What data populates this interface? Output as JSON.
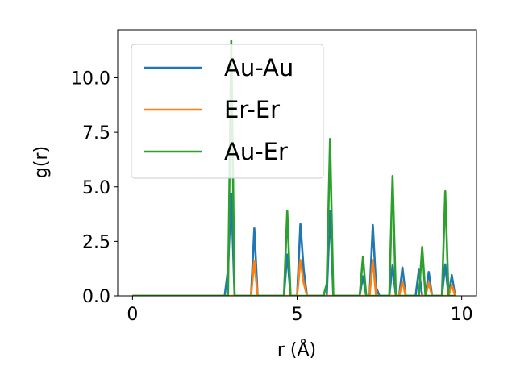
{
  "chart_data": {
    "type": "line",
    "xlabel": "r (Å)",
    "ylabel": "g(r)",
    "xlim": [
      -0.45,
      10.45
    ],
    "ylim": [
      0,
      12.2
    ],
    "xticks": [
      0,
      5,
      10
    ],
    "xtick_labels": [
      "0",
      "5",
      "10"
    ],
    "yticks": [
      0.0,
      2.5,
      5.0,
      7.5,
      10.0
    ],
    "ytick_labels": [
      "0.0",
      "2.5",
      "5.0",
      "7.5",
      "10.0"
    ],
    "grid": false,
    "legend_position": "top-left",
    "x": [
      0.0,
      0.1,
      0.2,
      0.3,
      0.4,
      0.5,
      0.6,
      0.7,
      0.8,
      0.9,
      1.0,
      1.1,
      1.2,
      1.3,
      1.4,
      1.5,
      1.6,
      1.7,
      1.8,
      1.9,
      2.0,
      2.1,
      2.2,
      2.3,
      2.4,
      2.5,
      2.6,
      2.7,
      2.8,
      2.9,
      3.0,
      3.1,
      3.2,
      3.3,
      3.4,
      3.5,
      3.6,
      3.7,
      3.8,
      3.9,
      4.0,
      4.1,
      4.2,
      4.3,
      4.4,
      4.5,
      4.6,
      4.7,
      4.8,
      4.9,
      5.0,
      5.1,
      5.2,
      5.3,
      5.4,
      5.5,
      5.6,
      5.7,
      5.8,
      5.9,
      6.0,
      6.1,
      6.2,
      6.3,
      6.4,
      6.5,
      6.6,
      6.7,
      6.8,
      6.9,
      7.0,
      7.1,
      7.2,
      7.3,
      7.4,
      7.5,
      7.6,
      7.7,
      7.8,
      7.9,
      8.0,
      8.1,
      8.2,
      8.3,
      8.4,
      8.5,
      8.6,
      8.7,
      8.8,
      8.9,
      9.0,
      9.1,
      9.2,
      9.3,
      9.4,
      9.5,
      9.6,
      9.7,
      9.8
    ],
    "series": [
      {
        "name": "Au-Au",
        "color": "#1f77b4",
        "values": [
          0,
          0,
          0,
          0,
          0,
          0,
          0,
          0,
          0,
          0,
          0,
          0,
          0,
          0,
          0,
          0,
          0,
          0,
          0,
          0,
          0,
          0,
          0,
          0,
          0,
          0,
          0,
          0,
          0,
          1.2,
          4.7,
          0,
          0,
          0,
          0,
          0,
          0,
          3.1,
          0,
          0,
          0,
          0,
          0,
          0,
          0,
          0,
          0,
          1.9,
          0,
          0,
          0,
          3.3,
          1.2,
          0,
          0,
          0,
          0,
          0,
          0,
          0,
          3.9,
          0,
          0,
          0,
          0,
          0,
          0,
          0,
          0,
          0,
          0.9,
          0,
          0,
          3.25,
          0.4,
          0,
          0,
          0,
          0,
          1.4,
          0,
          0,
          1.3,
          0,
          0,
          0,
          0,
          1.2,
          0,
          0,
          1.1,
          0,
          0,
          0,
          0,
          1.45,
          0,
          0.95,
          0
        ]
      },
      {
        "name": "Er-Er",
        "color": "#ff7f0e",
        "values": [
          0,
          0,
          0,
          0,
          0,
          0,
          0,
          0,
          0,
          0,
          0,
          0,
          0,
          0,
          0,
          0,
          0,
          0,
          0,
          0,
          0,
          0,
          0,
          0,
          0,
          0,
          0,
          0,
          0,
          0,
          0,
          0,
          0,
          0,
          0,
          0,
          0,
          1.6,
          0,
          0,
          0,
          0,
          0,
          0,
          0,
          0,
          0,
          0,
          0,
          0,
          0,
          1.65,
          0.6,
          0,
          0,
          0,
          0,
          0,
          0,
          0,
          0,
          0,
          0,
          0,
          0,
          0,
          0,
          0,
          0,
          0,
          0,
          0,
          0,
          1.65,
          0,
          0,
          0,
          0,
          0,
          0,
          0,
          0,
          0.65,
          0,
          0,
          0,
          0,
          0,
          0,
          0,
          0.6,
          0,
          0,
          0,
          0,
          0,
          0,
          0.5,
          0
        ]
      },
      {
        "name": "Au-Er",
        "color": "#2ca02c",
        "values": [
          0,
          0,
          0,
          0,
          0,
          0,
          0,
          0,
          0,
          0,
          0,
          0,
          0,
          0,
          0,
          0,
          0,
          0,
          0,
          0,
          0,
          0,
          0,
          0,
          0,
          0,
          0,
          0,
          0,
          0,
          11.7,
          0,
          0,
          0,
          0,
          0,
          0,
          0,
          0,
          0,
          0,
          0,
          0,
          0,
          0,
          0,
          0,
          3.9,
          0,
          0,
          0,
          0,
          0,
          0,
          0,
          0,
          0,
          0,
          0,
          0.55,
          7.2,
          0,
          0,
          0,
          0,
          0,
          0,
          0,
          0,
          0,
          1.8,
          0,
          0,
          0,
          0,
          0,
          0,
          0,
          0,
          5.5,
          0,
          0,
          0,
          0,
          0,
          0,
          0,
          0,
          2.25,
          0,
          0,
          0,
          0,
          0,
          0,
          4.8,
          0,
          0,
          0
        ]
      }
    ]
  }
}
